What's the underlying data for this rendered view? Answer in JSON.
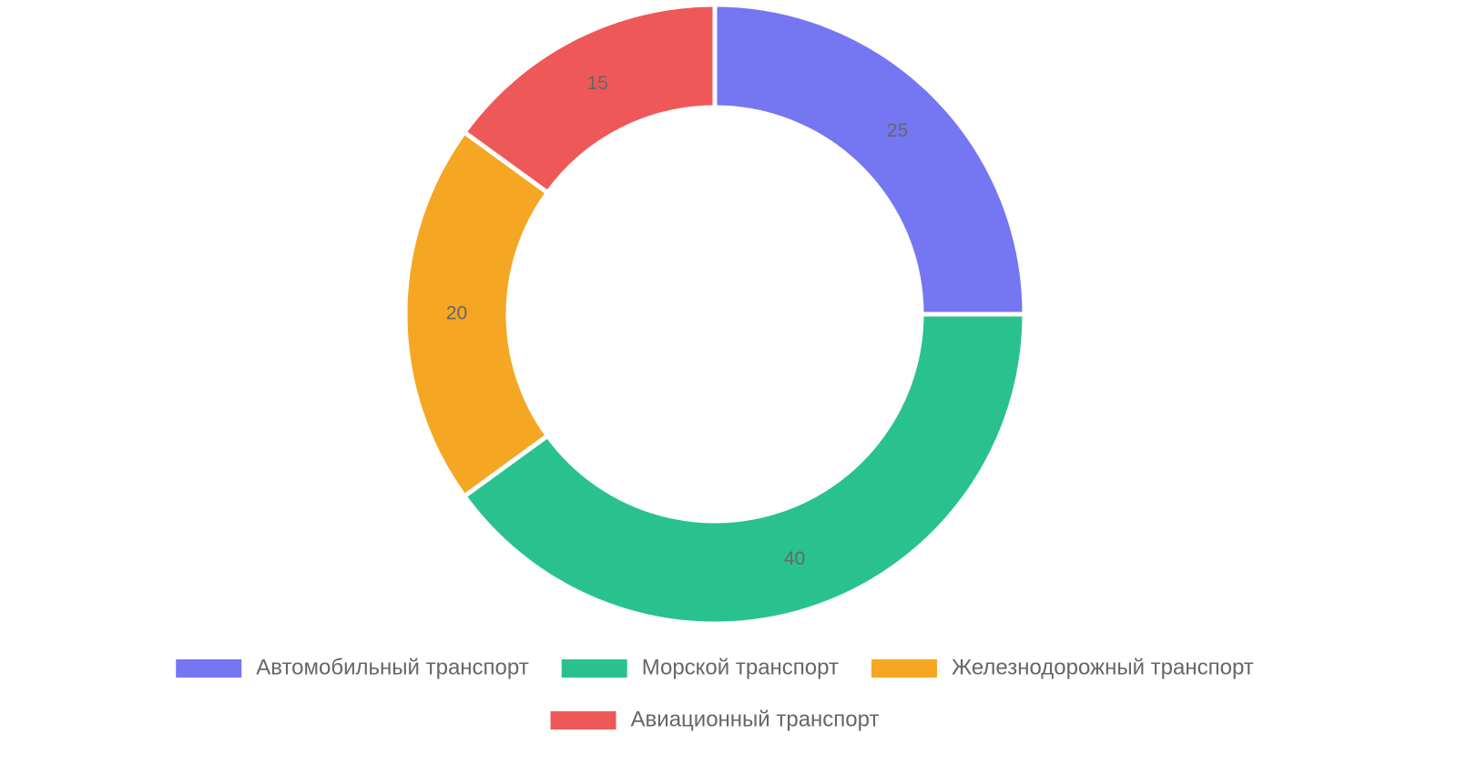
{
  "chart_data": {
    "type": "donut",
    "categories": [
      "Автомобильный транспорт",
      "Морской транспорт",
      "Железнодорожный транспорт",
      "Авиационный транспорт"
    ],
    "values": [
      25,
      40,
      20,
      15
    ],
    "colors": [
      "#7476f2",
      "#29c28e",
      "#f5a623",
      "#ef5858"
    ],
    "legend": "bottom"
  }
}
